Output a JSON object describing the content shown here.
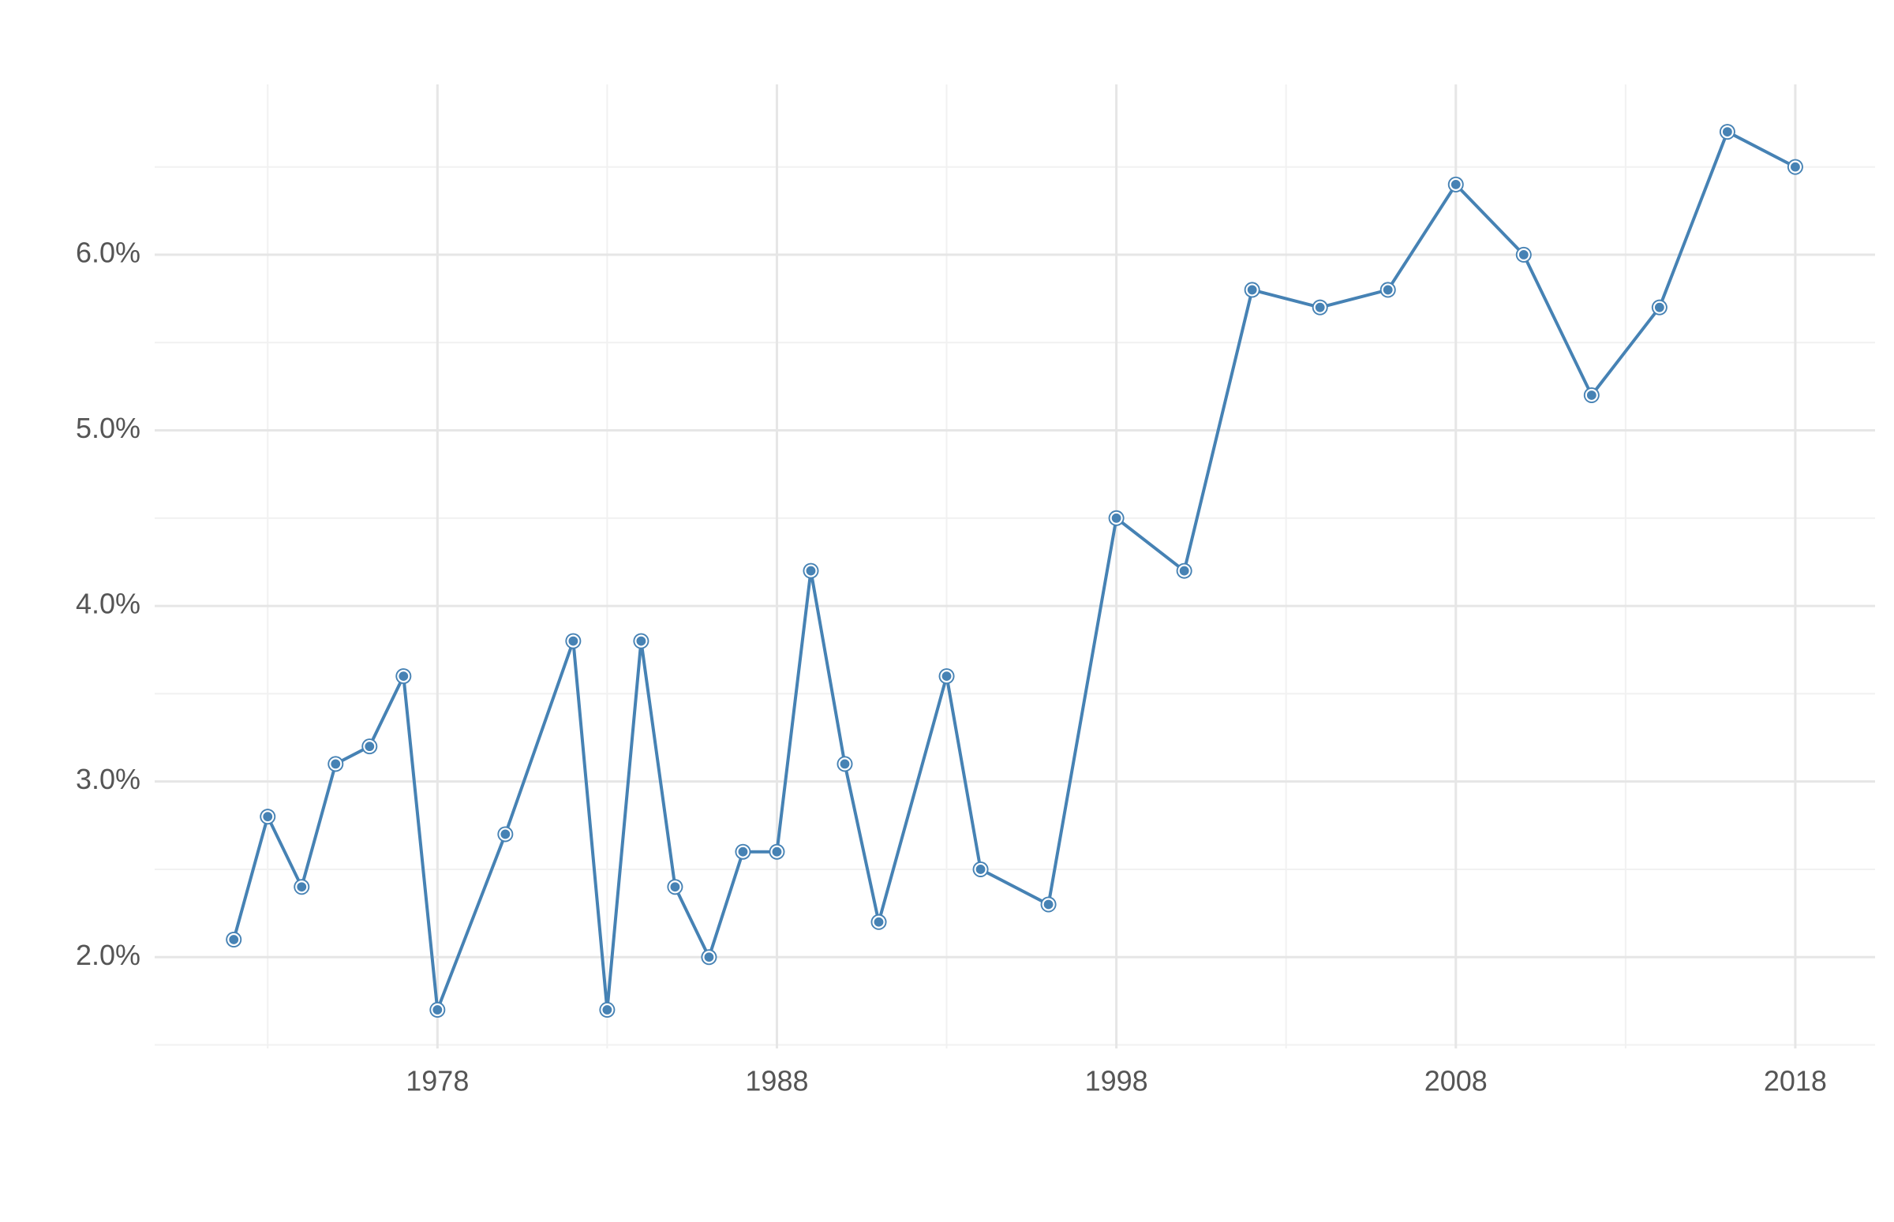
{
  "chart_data": {
    "type": "line",
    "x": [
      1972,
      1973,
      1974,
      1975,
      1976,
      1977,
      1978,
      1980,
      1982,
      1983,
      1984,
      1985,
      1986,
      1987,
      1988,
      1989,
      1990,
      1991,
      1993,
      1994,
      1996,
      1998,
      2000,
      2002,
      2004,
      2006,
      2008,
      2010,
      2012,
      2014,
      2016,
      2018
    ],
    "values": [
      2.1,
      2.8,
      2.4,
      3.1,
      3.2,
      3.6,
      1.7,
      2.7,
      3.8,
      1.7,
      3.8,
      2.4,
      2.0,
      2.6,
      2.6,
      4.2,
      3.1,
      2.2,
      3.6,
      2.5,
      2.3,
      4.5,
      4.2,
      5.8,
      5.7,
      5.8,
      6.4,
      6.0,
      5.2,
      5.7,
      6.7,
      6.5
    ],
    "color": "#4682b4",
    "xlim": [
      1969.67,
      2020.35
    ],
    "xticks": [
      1978,
      1988,
      1998,
      2008,
      2018
    ],
    "minor_xticks": [
      1973,
      1983,
      1993,
      2003,
      2013
    ],
    "ylim": [
      1.48,
      6.97
    ],
    "yticks": [
      {
        "value": 2,
        "label": "2.0%"
      },
      {
        "value": 3,
        "label": "3.0%"
      },
      {
        "value": 4,
        "label": "4.0%"
      },
      {
        "value": 5,
        "label": "5.0%"
      },
      {
        "value": 6,
        "label": "6.0%"
      }
    ],
    "minor_yticks": [
      1.5,
      2.5,
      3.5,
      4.5,
      5.5,
      6.5
    ],
    "grid": true
  }
}
